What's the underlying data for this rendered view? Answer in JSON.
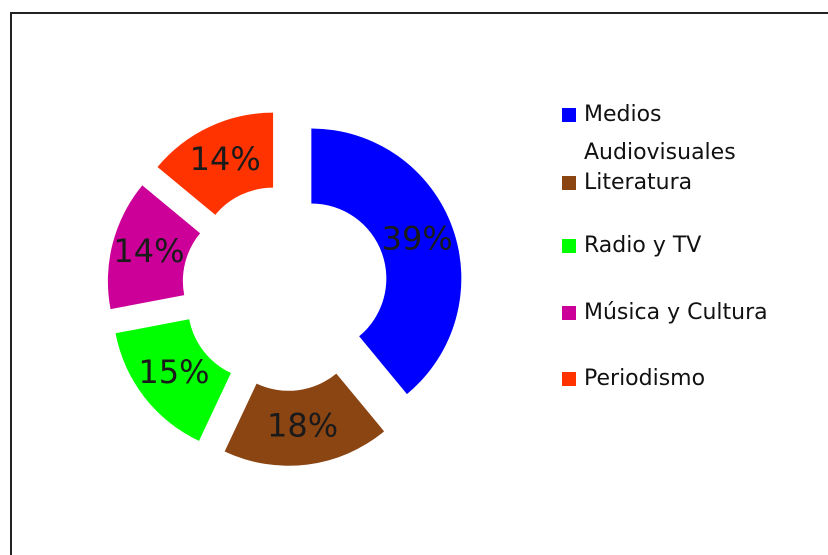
{
  "chart_data": {
    "type": "donut",
    "categories": [
      "Medios Audiovisuales",
      "Literatura",
      "Radio y TV",
      "Música y Cultura",
      "Periodismo"
    ],
    "values": [
      39,
      18,
      15,
      14,
      14
    ],
    "value_labels": [
      "39%",
      "18%",
      "15%",
      "14%",
      "14%"
    ],
    "colors": [
      "#0000ff",
      "#8b4513",
      "#00ff00",
      "#cc0099",
      "#ff3300"
    ],
    "legend": "right"
  }
}
